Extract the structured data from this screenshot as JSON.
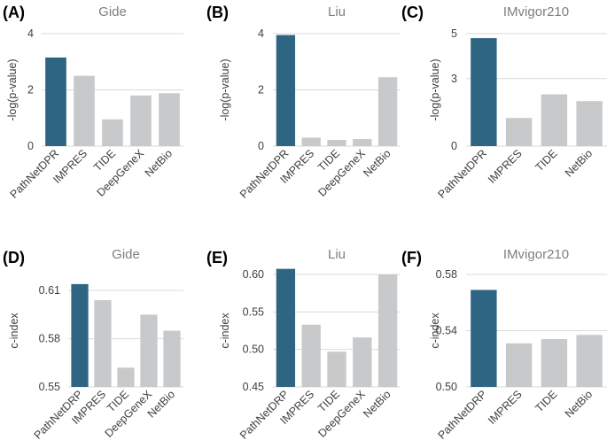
{
  "figure": {
    "highlight_color": "#2e6583",
    "other_color": "#c8c9cb",
    "gridline_color": "#d9d9d9"
  },
  "chart_data": [
    {
      "type": "bar",
      "panel": "(A)",
      "title": "Gide",
      "ylabel": "-log(p-value)",
      "categories": [
        "PathNetDPR",
        "IMPRES",
        "TIDE",
        "DeepGeneX",
        "NetBio"
      ],
      "values": [
        3.15,
        2.5,
        0.95,
        1.8,
        1.88
      ],
      "ylim": [
        0,
        4
      ],
      "yticks": [
        0,
        2,
        4
      ],
      "tick_labels": [
        "0",
        "2",
        "4"
      ],
      "highlight_index": 0
    },
    {
      "type": "bar",
      "panel": "(B)",
      "title": "Liu",
      "ylabel": "-log(p-value)",
      "categories": [
        "PathNetDPR",
        "IMPRES",
        "TIDE",
        "DeepGeneX",
        "NetBio"
      ],
      "values": [
        3.95,
        0.3,
        0.22,
        0.25,
        2.45
      ],
      "ylim": [
        0,
        4
      ],
      "yticks": [
        0,
        2,
        4
      ],
      "tick_labels": [
        "0",
        "2",
        "4"
      ],
      "highlight_index": 0
    },
    {
      "type": "bar",
      "panel": "(C)",
      "title": "IMvigor210",
      "ylabel": "-log(p-value)",
      "categories": [
        "PathNetDPR",
        "IMPRES",
        "TIDE",
        "NetBio"
      ],
      "values": [
        4.8,
        1.25,
        2.3,
        2.0
      ],
      "ylim": [
        0,
        5
      ],
      "yticks": [
        0,
        3,
        5
      ],
      "tick_labels": [
        "0",
        "3",
        "5"
      ],
      "highlight_index": 0
    },
    {
      "type": "bar",
      "panel": "(D)",
      "title": "Gide",
      "ylabel": "c-index",
      "categories": [
        "PathNetDRP",
        "IMPRES",
        "TIDE",
        "DeepGeneX",
        "NetBio"
      ],
      "values": [
        0.614,
        0.604,
        0.562,
        0.595,
        0.585
      ],
      "ylim": [
        0.55,
        0.62
      ],
      "yticks": [
        0.55,
        0.58,
        0.61
      ],
      "tick_labels": [
        "0.55",
        "0.58",
        "0.61"
      ],
      "highlight_index": 0
    },
    {
      "type": "bar",
      "panel": "(E)",
      "title": "Liu",
      "ylabel": "c-index",
      "categories": [
        "PathNetDRP",
        "IMPRES",
        "TIDE",
        "DeepGeneX",
        "NetBio"
      ],
      "values": [
        0.617,
        0.533,
        0.497,
        0.516,
        0.6
      ],
      "ylim": [
        0.45,
        0.6
      ],
      "yticks": [
        0.45,
        0.5,
        0.55,
        0.6
      ],
      "tick_labels": [
        "0.45",
        "0.50",
        "0.55",
        "0.60"
      ],
      "highlight_index": 0
    },
    {
      "type": "bar",
      "panel": "(F)",
      "title": "IMvigor210",
      "ylabel": "c-index",
      "categories": [
        "PathNetDRP",
        "IMPRES",
        "TIDE",
        "NetBio"
      ],
      "values": [
        0.569,
        0.531,
        0.534,
        0.537
      ],
      "ylim": [
        0.5,
        0.58
      ],
      "yticks": [
        0.5,
        0.54,
        0.58
      ],
      "tick_labels": [
        "0.50",
        "0.54",
        "0.58"
      ],
      "highlight_index": 0
    }
  ]
}
